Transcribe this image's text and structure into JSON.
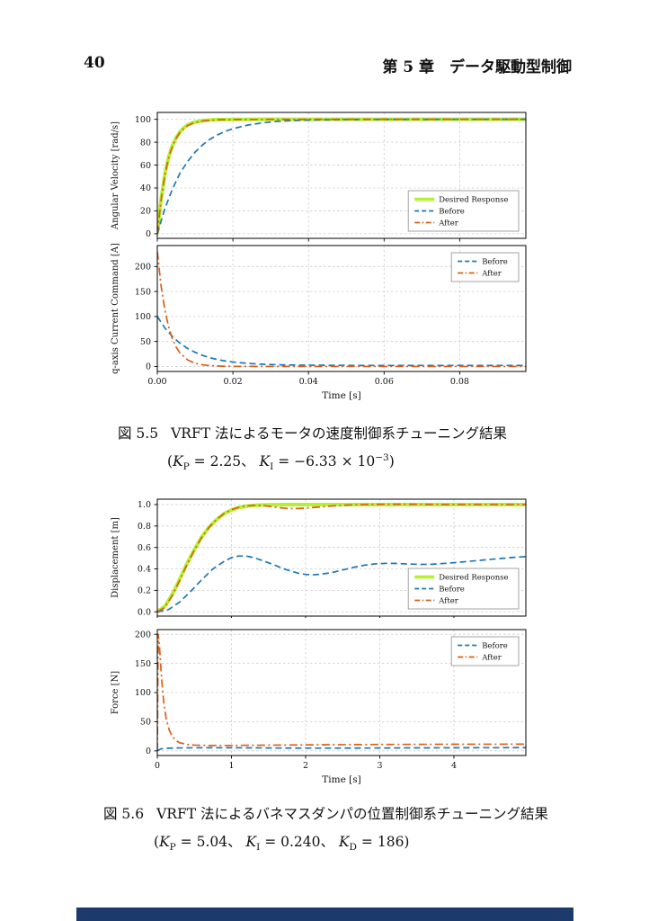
{
  "page": {
    "number": "40",
    "header": "第 5 章　データ駆動型制御",
    "footer_bar_color": "#1d3a6d"
  },
  "figures": [
    {
      "no": "図 5.5",
      "title": "VRFT 法によるモータの速度制御系チューニング結果",
      "params": "(K_{P} = 2.25、 K_{I} = −6.33 × 10^{−3})"
    },
    {
      "no": "図 5.6",
      "title": "VRFT 法によるバネマスダンパの位置制御系チューニング結果",
      "params": "(K_{P} = 5.04、 K_{I} = 0.240、 K_{D} = 186)"
    }
  ],
  "chart_data": [
    {
      "type": "line",
      "ylabel": "Angular Velocity [rad/s]",
      "xlabel": "",
      "xlim": [
        0,
        0.0975
      ],
      "ylim": [
        -4,
        106
      ],
      "xticks": [
        0,
        0.02,
        0.04,
        0.06,
        0.08
      ],
      "xtick_labels": [
        "0.00",
        "0.02",
        "0.04",
        "0.06",
        "0.08"
      ],
      "show_xtick_labels": false,
      "yticks": [
        0,
        20,
        40,
        60,
        80,
        100
      ],
      "ytick_labels": [
        "0",
        "20",
        "40",
        "60",
        "80",
        "100"
      ],
      "grid": true,
      "legend": {
        "pos": "lower-right"
      },
      "series": [
        {
          "name": "Desired Response",
          "color": "#b3f22d",
          "dash": "solid",
          "width": 4,
          "points": [
            [
              0,
              0
            ],
            [
              0.001,
              30
            ],
            [
              0.002,
              52
            ],
            [
              0.003,
              67
            ],
            [
              0.004,
              77
            ],
            [
              0.005,
              84
            ],
            [
              0.006,
              89
            ],
            [
              0.007,
              92.5
            ],
            [
              0.008,
              95
            ],
            [
              0.009,
              96.5
            ],
            [
              0.01,
              97.5
            ],
            [
              0.012,
              98.8
            ],
            [
              0.014,
              99.4
            ],
            [
              0.016,
              99.7
            ],
            [
              0.02,
              99.9
            ],
            [
              0.03,
              100
            ],
            [
              0.05,
              100
            ],
            [
              0.0975,
              100
            ]
          ]
        },
        {
          "name": "Before",
          "color": "#1f77b4",
          "dash": "dashed",
          "width": 1.7,
          "points": [
            [
              0,
              0
            ],
            [
              0.002,
              22
            ],
            [
              0.004,
              39
            ],
            [
              0.006,
              53
            ],
            [
              0.008,
              63
            ],
            [
              0.01,
              71.3
            ],
            [
              0.012,
              77.7
            ],
            [
              0.014,
              82.7
            ],
            [
              0.016,
              86.5
            ],
            [
              0.018,
              89.5
            ],
            [
              0.02,
              91.8
            ],
            [
              0.024,
              95
            ],
            [
              0.028,
              97
            ],
            [
              0.032,
              98.2
            ],
            [
              0.036,
              98.9
            ],
            [
              0.04,
              99.3
            ],
            [
              0.05,
              99.8
            ],
            [
              0.06,
              99.9
            ],
            [
              0.0975,
              100
            ]
          ]
        },
        {
          "name": "After",
          "color": "#d9601a",
          "dash": "dashdot",
          "width": 1.7,
          "points": [
            [
              0,
              0
            ],
            [
              0.001,
              29.5
            ],
            [
              0.002,
              51.5
            ],
            [
              0.003,
              66.5
            ],
            [
              0.004,
              76.5
            ],
            [
              0.005,
              83.5
            ],
            [
              0.006,
              88.5
            ],
            [
              0.007,
              92
            ],
            [
              0.008,
              94.5
            ],
            [
              0.009,
              96
            ],
            [
              0.01,
              97.2
            ],
            [
              0.012,
              98.6
            ],
            [
              0.014,
              99.2
            ],
            [
              0.016,
              99.6
            ],
            [
              0.02,
              99.8
            ],
            [
              0.03,
              99.9
            ],
            [
              0.05,
              100
            ],
            [
              0.0975,
              100
            ]
          ]
        }
      ]
    },
    {
      "type": "line",
      "ylabel": "q-axis Current Command [A]",
      "xlabel": "Time [s]",
      "xlim": [
        0,
        0.0975
      ],
      "ylim": [
        -10,
        242
      ],
      "xticks": [
        0,
        0.02,
        0.04,
        0.06,
        0.08
      ],
      "xtick_labels": [
        "0.00",
        "0.02",
        "0.04",
        "0.06",
        "0.08"
      ],
      "show_xtick_labels": true,
      "yticks": [
        0,
        50,
        100,
        150,
        200
      ],
      "ytick_labels": [
        "0",
        "50",
        "100",
        "150",
        "200"
      ],
      "grid": true,
      "legend": {
        "pos": "upper-right"
      },
      "series": [
        {
          "name": "Before",
          "color": "#1f77b4",
          "dash": "dashed",
          "width": 1.7,
          "points": [
            [
              0,
              100
            ],
            [
              0.002,
              77
            ],
            [
              0.004,
              60
            ],
            [
              0.006,
              46.5
            ],
            [
              0.008,
              36
            ],
            [
              0.01,
              28.3
            ],
            [
              0.012,
              22.1
            ],
            [
              0.014,
              17.3
            ],
            [
              0.016,
              13.7
            ],
            [
              0.018,
              10.9
            ],
            [
              0.02,
              8.9
            ],
            [
              0.024,
              6.1
            ],
            [
              0.028,
              4.4
            ],
            [
              0.032,
              3.4
            ],
            [
              0.036,
              2.8
            ],
            [
              0.04,
              2.5
            ],
            [
              0.05,
              2.1
            ],
            [
              0.06,
              2.0
            ],
            [
              0.0975,
              2.0
            ]
          ]
        },
        {
          "name": "After",
          "color": "#d9601a",
          "dash": "dashdot",
          "width": 1.7,
          "points": [
            [
              0,
              230
            ],
            [
              0.001,
              161
            ],
            [
              0.002,
              113
            ],
            [
              0.003,
              79
            ],
            [
              0.004,
              55
            ],
            [
              0.005,
              38.5
            ],
            [
              0.006,
              27
            ],
            [
              0.008,
              13.2
            ],
            [
              0.01,
              6.5
            ],
            [
              0.012,
              3.2
            ],
            [
              0.014,
              1.6
            ],
            [
              0.018,
              0.4
            ],
            [
              0.022,
              0.1
            ],
            [
              0.03,
              0
            ],
            [
              0.0975,
              0
            ]
          ]
        }
      ]
    },
    {
      "type": "line",
      "ylabel": "Displacement [m]",
      "xlabel": "",
      "xlim": [
        0,
        4.97
      ],
      "ylim": [
        -0.04,
        1.05
      ],
      "xticks": [
        0,
        1,
        2,
        3,
        4
      ],
      "xtick_labels": [
        "0",
        "1",
        "2",
        "3",
        "4"
      ],
      "show_xtick_labels": false,
      "yticks": [
        0,
        0.2,
        0.4,
        0.6,
        0.8,
        1.0
      ],
      "ytick_labels": [
        "0.0",
        "0.2",
        "0.4",
        "0.6",
        "0.8",
        "1.0"
      ],
      "grid": true,
      "legend": {
        "pos": "lower-right"
      },
      "series": [
        {
          "name": "Desired Response",
          "color": "#b3f22d",
          "dash": "solid",
          "width": 4,
          "points": [
            [
              0,
              0
            ],
            [
              0.1,
              0.05
            ],
            [
              0.2,
              0.16
            ],
            [
              0.3,
              0.3
            ],
            [
              0.4,
              0.45
            ],
            [
              0.5,
              0.58
            ],
            [
              0.6,
              0.7
            ],
            [
              0.7,
              0.79
            ],
            [
              0.8,
              0.86
            ],
            [
              0.9,
              0.915
            ],
            [
              1.0,
              0.95
            ],
            [
              1.1,
              0.972
            ],
            [
              1.2,
              0.985
            ],
            [
              1.35,
              0.994
            ],
            [
              1.5,
              0.998
            ],
            [
              1.75,
              1.0
            ],
            [
              2,
              1.0
            ],
            [
              3,
              1.0
            ],
            [
              4,
              1.0
            ],
            [
              4.97,
              1.0
            ]
          ]
        },
        {
          "name": "Before",
          "color": "#1f77b4",
          "dash": "dashed",
          "width": 1.7,
          "points": [
            [
              0,
              0
            ],
            [
              0.15,
              0.02
            ],
            [
              0.3,
              0.09
            ],
            [
              0.45,
              0.19
            ],
            [
              0.6,
              0.3
            ],
            [
              0.75,
              0.4
            ],
            [
              0.9,
              0.47
            ],
            [
              1.0,
              0.505
            ],
            [
              1.1,
              0.52
            ],
            [
              1.2,
              0.52
            ],
            [
              1.3,
              0.505
            ],
            [
              1.45,
              0.47
            ],
            [
              1.6,
              0.43
            ],
            [
              1.75,
              0.39
            ],
            [
              1.9,
              0.36
            ],
            [
              2.0,
              0.348
            ],
            [
              2.1,
              0.345
            ],
            [
              2.2,
              0.35
            ],
            [
              2.35,
              0.365
            ],
            [
              2.5,
              0.39
            ],
            [
              2.65,
              0.415
            ],
            [
              2.8,
              0.435
            ],
            [
              2.95,
              0.448
            ],
            [
              3.1,
              0.452
            ],
            [
              3.25,
              0.45
            ],
            [
              3.4,
              0.445
            ],
            [
              3.55,
              0.442
            ],
            [
              3.7,
              0.443
            ],
            [
              3.85,
              0.45
            ],
            [
              4.0,
              0.458
            ],
            [
              4.2,
              0.47
            ],
            [
              4.4,
              0.483
            ],
            [
              4.6,
              0.495
            ],
            [
              4.8,
              0.507
            ],
            [
              4.97,
              0.515
            ]
          ]
        },
        {
          "name": "After",
          "color": "#d9601a",
          "dash": "dashdot",
          "width": 1.7,
          "points": [
            [
              0,
              0
            ],
            [
              0.1,
              0.04
            ],
            [
              0.2,
              0.15
            ],
            [
              0.3,
              0.29
            ],
            [
              0.4,
              0.44
            ],
            [
              0.5,
              0.575
            ],
            [
              0.6,
              0.695
            ],
            [
              0.7,
              0.79
            ],
            [
              0.8,
              0.862
            ],
            [
              0.9,
              0.915
            ],
            [
              1.0,
              0.952
            ],
            [
              1.1,
              0.975
            ],
            [
              1.2,
              0.988
            ],
            [
              1.3,
              0.993
            ],
            [
              1.4,
              0.992
            ],
            [
              1.5,
              0.985
            ],
            [
              1.6,
              0.975
            ],
            [
              1.7,
              0.967
            ],
            [
              1.8,
              0.963
            ],
            [
              1.9,
              0.963
            ],
            [
              2.0,
              0.967
            ],
            [
              2.2,
              0.978
            ],
            [
              2.4,
              0.989
            ],
            [
              2.6,
              0.996
            ],
            [
              2.8,
              1.0
            ],
            [
              3.0,
              1.002
            ],
            [
              3.3,
              1.003
            ],
            [
              3.6,
              1.002
            ],
            [
              4.0,
              1.0
            ],
            [
              4.5,
              1.0
            ],
            [
              4.97,
              1.0
            ]
          ]
        }
      ]
    },
    {
      "type": "line",
      "ylabel": "Force [N]",
      "xlabel": "Time [s]",
      "xlim": [
        0,
        4.97
      ],
      "ylim": [
        -8,
        208
      ],
      "xticks": [
        0,
        1,
        2,
        3,
        4
      ],
      "xtick_labels": [
        "0",
        "1",
        "2",
        "3",
        "4"
      ],
      "show_xtick_labels": true,
      "yticks": [
        0,
        50,
        100,
        150,
        200
      ],
      "ytick_labels": [
        "0",
        "50",
        "100",
        "150",
        "200"
      ],
      "grid": true,
      "legend": {
        "pos": "upper-right"
      },
      "series": [
        {
          "name": "Before",
          "color": "#1f77b4",
          "dash": "dashed",
          "width": 1.7,
          "points": [
            [
              0,
              0
            ],
            [
              0.05,
              3.5
            ],
            [
              0.15,
              4.5
            ],
            [
              0.3,
              5.0
            ],
            [
              0.6,
              5.3
            ],
            [
              1.0,
              5.3
            ],
            [
              1.4,
              5.0
            ],
            [
              1.8,
              4.7
            ],
            [
              2.2,
              4.6
            ],
            [
              2.6,
              4.7
            ],
            [
              3.0,
              4.9
            ],
            [
              3.5,
              5.1
            ],
            [
              4.0,
              5.3
            ],
            [
              4.5,
              5.4
            ],
            [
              4.97,
              5.5
            ]
          ]
        },
        {
          "name": "After",
          "color": "#d9601a",
          "dash": "dashdot",
          "width": 1.7,
          "points": [
            [
              0,
              0
            ],
            [
              0.012,
              200
            ],
            [
              0.03,
              178
            ],
            [
              0.06,
              120
            ],
            [
              0.09,
              80
            ],
            [
              0.12,
              55
            ],
            [
              0.16,
              36
            ],
            [
              0.2,
              25
            ],
            [
              0.25,
              18
            ],
            [
              0.3,
              14
            ],
            [
              0.4,
              11
            ],
            [
              0.5,
              9.8
            ],
            [
              0.7,
              9.2
            ],
            [
              1.0,
              9.3
            ],
            [
              1.5,
              9.8
            ],
            [
              2.0,
              10.2
            ],
            [
              2.5,
              10.6
            ],
            [
              3.0,
              10.9
            ],
            [
              3.5,
              11.1
            ],
            [
              4.0,
              11.3
            ],
            [
              4.5,
              11.4
            ],
            [
              4.97,
              11.5
            ]
          ]
        }
      ]
    }
  ]
}
